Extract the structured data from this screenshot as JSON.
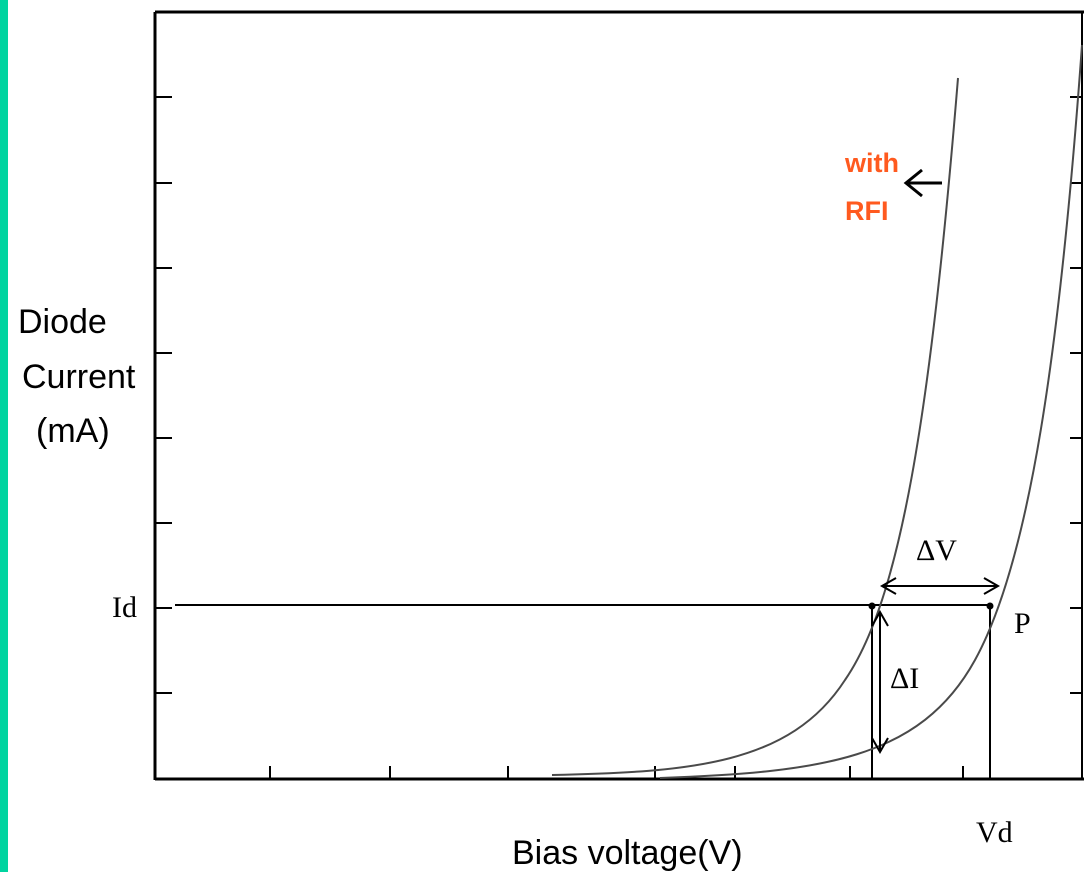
{
  "colors": {
    "frame_left": "#00d4a0",
    "axis": "#000000",
    "curve": "#4a4a4a",
    "annotation": "#ff5a1f"
  },
  "y_axis_label": {
    "line1": "Diode",
    "line2": "Current",
    "line3": "(mA)"
  },
  "x_axis_label": "Bias voltage(V)",
  "labels": {
    "id": "Id",
    "vd": "Vd",
    "p": "P",
    "delta_v": "ΔV",
    "delta_i": "ΔI"
  },
  "annotation": {
    "line1": "with",
    "line2": "RFI"
  }
}
